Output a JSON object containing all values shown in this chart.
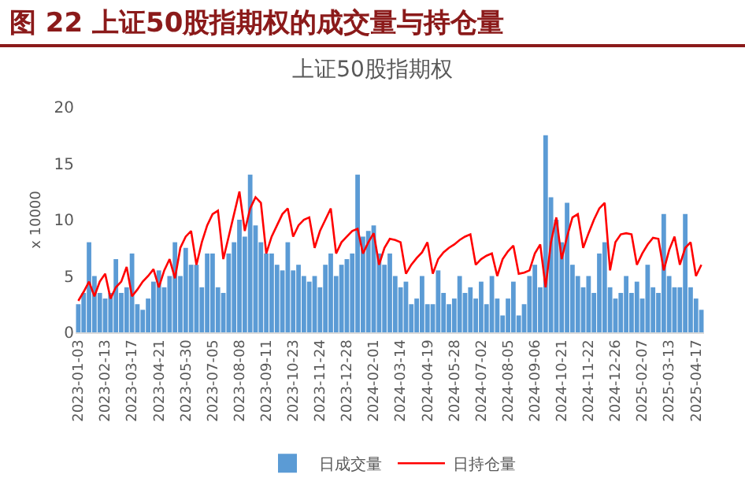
{
  "chart_data": {
    "type": "bar",
    "title": "图 22 上证50股指期权的成交量与持仓量",
    "subtitle": "上证50股指期权",
    "ylabel": "x 10000",
    "categories": [
      "2023-01-03",
      null,
      null,
      null,
      null,
      "2023-02-13",
      null,
      null,
      null,
      null,
      "2023-03-17",
      null,
      null,
      null,
      null,
      "2023-04-21",
      null,
      null,
      null,
      null,
      "2023-05-30",
      null,
      null,
      null,
      null,
      "2023-07-05",
      null,
      null,
      null,
      null,
      "2023-08-08",
      null,
      null,
      null,
      null,
      "2023-09-11",
      null,
      null,
      null,
      null,
      "2023-10-23",
      null,
      null,
      null,
      null,
      "2023-11-24",
      null,
      null,
      null,
      null,
      "2023-12-28",
      null,
      null,
      null,
      null,
      "2024-02-01",
      null,
      null,
      null,
      null,
      "2024-03-14",
      null,
      null,
      null,
      null,
      "2024-04-19",
      null,
      null,
      null,
      null,
      "2024-05-28",
      null,
      null,
      null,
      null,
      "2024-07-02",
      null,
      null,
      null,
      null,
      "2024-08-05",
      null,
      null,
      null,
      null,
      "2024-09-06",
      null,
      null,
      null,
      null,
      "2024-10-21",
      null,
      null,
      null,
      null,
      "2024-11-22",
      null,
      null,
      null,
      null,
      "2024-12-26",
      null,
      null,
      null,
      null,
      "2025-02-07",
      null,
      null,
      null,
      null,
      "2025-03-13",
      null,
      null,
      null,
      null,
      "2025-04-17",
      null
    ],
    "series": [
      {
        "name": "日成交量",
        "color": "#5b9bd5",
        "values": [
          2.5,
          3.5,
          8.0,
          5.0,
          3.5,
          3.0,
          3.5,
          6.5,
          3.5,
          4.0,
          7.0,
          2.5,
          2.0,
          3.0,
          4.5,
          5.5,
          4.0,
          5.0,
          8.0,
          5.0,
          7.5,
          6.0,
          6.0,
          4.0,
          7.0,
          7.0,
          4.0,
          3.5,
          7.0,
          8.0,
          10.0,
          8.5,
          14.0,
          9.5,
          8.0,
          7.0,
          7.0,
          6.0,
          5.5,
          8.0,
          5.5,
          6.0,
          5.0,
          4.5,
          5.0,
          4.0,
          6.0,
          7.0,
          5.0,
          6.0,
          6.5,
          7.0,
          14.0,
          8.5,
          9.0,
          9.5,
          7.0,
          6.0,
          7.0,
          5.0,
          4.0,
          4.5,
          2.5,
          3.0,
          5.0,
          2.5,
          2.5,
          5.5,
          3.5,
          2.5,
          3.0,
          5.0,
          3.5,
          4.0,
          3.0,
          4.5,
          2.5,
          5.0,
          3.0,
          1.5,
          3.0,
          4.5,
          1.5,
          2.5,
          5.0,
          6.0,
          4.0,
          17.5,
          12.0,
          10.0,
          8.0,
          11.5,
          6.0,
          5.0,
          4.0,
          5.0,
          3.5,
          7.0,
          8.0,
          4.0,
          3.0,
          3.5,
          5.0,
          3.5,
          4.5,
          3.0,
          6.0,
          4.0,
          3.5,
          10.5,
          5.0,
          4.0,
          4.0,
          10.5,
          4.0,
          3.0,
          2.0
        ]
      },
      {
        "name": "日持仓量",
        "type": "line",
        "color": "#ff0000",
        "values": [
          2.8,
          3.6,
          4.5,
          3.2,
          4.5,
          5.2,
          3.0,
          4.0,
          4.5,
          5.8,
          3.2,
          3.8,
          4.5,
          5.0,
          5.6,
          4.0,
          5.5,
          6.5,
          4.8,
          7.5,
          8.5,
          9.0,
          6.0,
          8.0,
          9.5,
          10.5,
          10.8,
          6.5,
          8.5,
          10.5,
          12.5,
          9.0,
          11.0,
          12.0,
          11.5,
          7.0,
          8.5,
          9.5,
          10.5,
          11.0,
          8.5,
          9.5,
          10.0,
          10.2,
          7.5,
          9.0,
          10.0,
          11.0,
          7.0,
          8.0,
          8.5,
          9.0,
          9.2,
          7.0,
          8.0,
          8.8,
          6.0,
          7.5,
          8.3,
          8.2,
          8.0,
          5.2,
          6.0,
          6.6,
          7.1,
          8.0,
          5.2,
          6.5,
          7.1,
          7.5,
          7.8,
          8.2,
          8.5,
          8.7,
          6.0,
          6.5,
          6.8,
          7.0,
          5.0,
          6.5,
          7.2,
          7.7,
          5.2,
          5.3,
          5.5,
          7.0,
          7.8,
          4.0,
          8.0,
          10.2,
          6.5,
          8.5,
          10.2,
          10.5,
          7.5,
          8.8,
          10.0,
          11.0,
          11.5,
          5.5,
          8.0,
          8.7,
          8.8,
          8.7,
          6.0,
          7.0,
          7.8,
          8.4,
          8.3,
          5.5,
          7.3,
          8.5,
          6.0,
          7.5,
          8.0,
          5.0,
          6.0
        ]
      }
    ],
    "ylim": [
      0,
      20
    ],
    "yticks": [
      0,
      5,
      10,
      15,
      20
    ],
    "grid": false,
    "legend": "bottom"
  }
}
